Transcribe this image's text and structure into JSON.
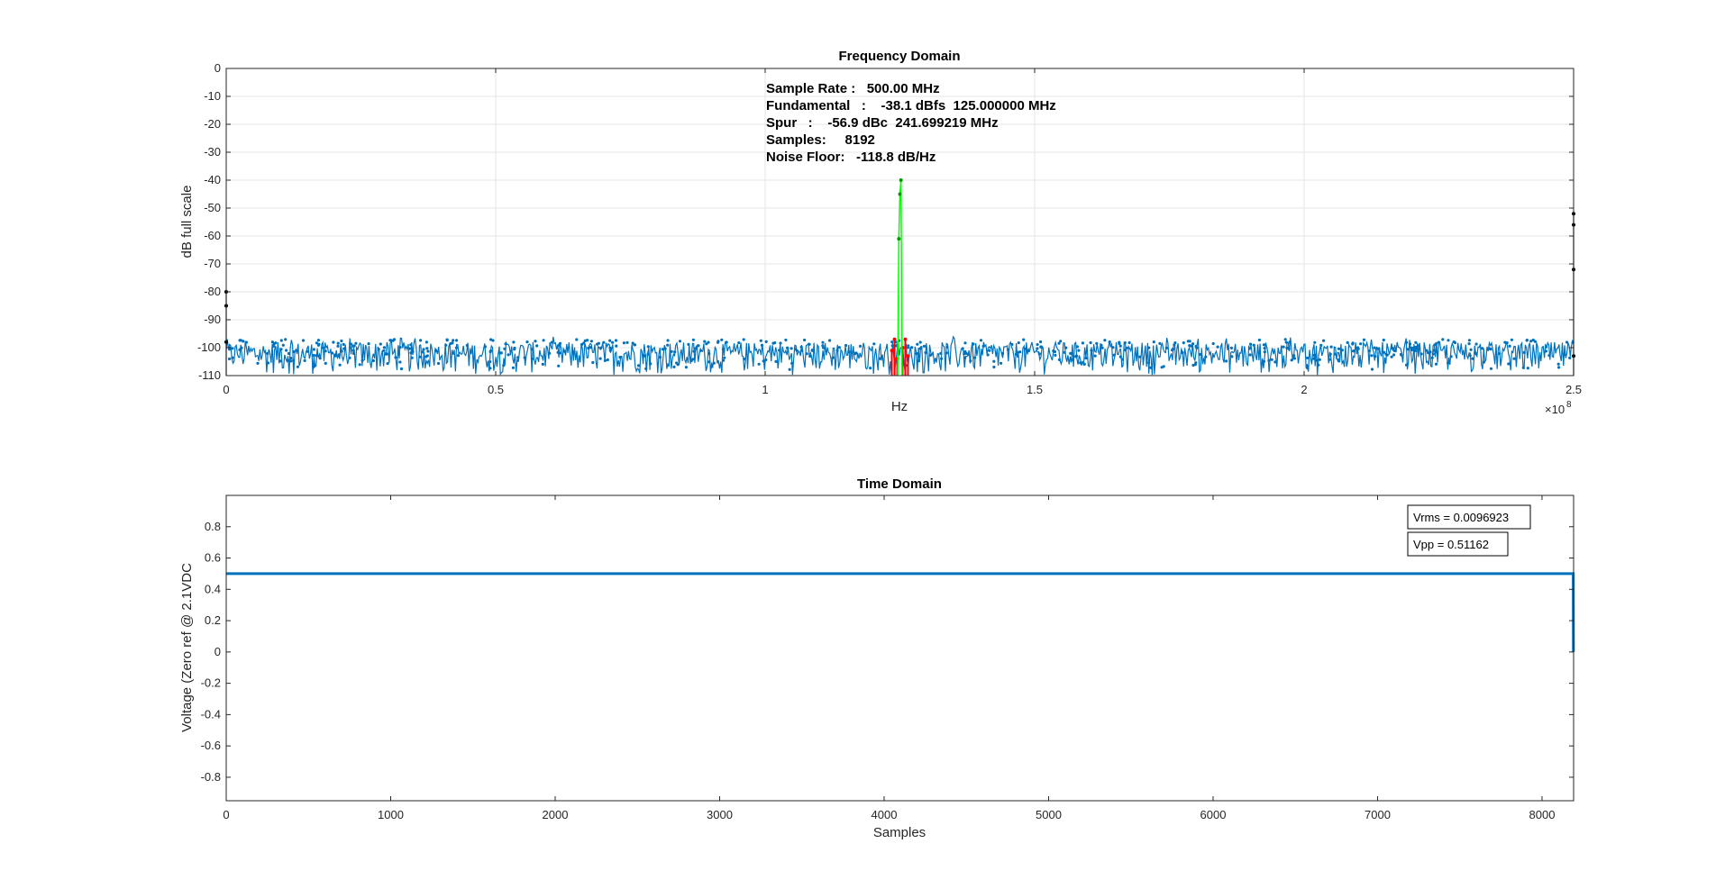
{
  "chart_data": [
    {
      "type": "line",
      "title": "Frequency Domain",
      "xlabel": "Hz",
      "ylabel": "dB full scale",
      "x_exponent_label": "10",
      "x_exponent_power": "8",
      "xlim": [
        0,
        250000000
      ],
      "ylim": [
        -110,
        0
      ],
      "xticks": [
        0,
        50000000,
        100000000,
        150000000,
        200000000,
        250000000
      ],
      "xtick_labels": [
        "0",
        "0.5",
        "1",
        "1.5",
        "2",
        "2.5"
      ],
      "yticks": [
        0,
        -10,
        -20,
        -30,
        -40,
        -50,
        -60,
        -70,
        -80,
        -90,
        -100,
        -110
      ],
      "ytick_labels": [
        "0",
        "-10",
        "-20",
        "-30",
        "-40",
        "-50",
        "-60",
        "-70",
        "-80",
        "-90",
        "-100",
        "-110"
      ],
      "grid": true,
      "noise_floor_band_db": [
        -110,
        -96
      ],
      "series": [
        {
          "color": "#0072bd",
          "marker": "dot",
          "description_values": "noise spectrum, roughly -110 to -100 dB across 0 to 250 MHz",
          "x": [
            0,
            250000000
          ],
          "y": [
            -105,
            -105
          ]
        },
        {
          "color": "#00ff00",
          "x": [
            124600000,
            124800000,
            125000000,
            125200000,
            125400000
          ],
          "y": [
            -110,
            -61,
            -45,
            -40,
            -110
          ]
        },
        {
          "color": "#ff0000",
          "x": [
            123500000,
            124000000,
            124500000,
            125500000,
            126000000,
            126500000
          ],
          "y": [
            -101,
            -97,
            -104,
            -100,
            -97,
            -103
          ]
        },
        {
          "color": "#000000",
          "x": [
            0,
            0,
            0,
            250000000,
            250000000,
            250000000,
            250000000
          ],
          "y": [
            -80,
            -85,
            -98,
            -52,
            -56,
            -72,
            -103
          ]
        }
      ],
      "annotations": {
        "line1": "Sample Rate :   500.00 MHz",
        "line2": "Fundamental   :    -38.1 dBfs  125.000000 MHz",
        "line3": "Spur   :    -56.9 dBc  241.699219 MHz",
        "line4": "Samples:     8192",
        "line5": "Noise Floor:   -118.8 dB/Hz"
      }
    },
    {
      "type": "line",
      "title": "Time Domain",
      "xlabel": "Samples",
      "ylabel": "Voltage (Zero ref @ 2.1VDC",
      "xlim": [
        0,
        8192
      ],
      "ylim": [
        -0.95,
        1.0
      ],
      "xticks": [
        0,
        1000,
        2000,
        3000,
        4000,
        5000,
        6000,
        7000,
        8000
      ],
      "xtick_labels": [
        "0",
        "1000",
        "2000",
        "3000",
        "4000",
        "5000",
        "6000",
        "7000",
        "8000"
      ],
      "yticks": [
        0.8,
        0.6,
        0.4,
        0.2,
        0,
        -0.2,
        -0.4,
        -0.6,
        -0.8
      ],
      "ytick_labels": [
        "0.8",
        "0.6",
        "0.4",
        "0.2",
        "0",
        "-0.2",
        "-0.4",
        "-0.6",
        "-0.8"
      ],
      "grid": false,
      "series": [
        {
          "color": "#0072bd",
          "x": [
            0,
            8190,
            8191
          ],
          "y": [
            0.5,
            0.5,
            0.0
          ]
        }
      ],
      "textboxes": {
        "vrms": "Vrms = 0.0096923",
        "vpp": "Vpp = 0.51162"
      }
    }
  ]
}
